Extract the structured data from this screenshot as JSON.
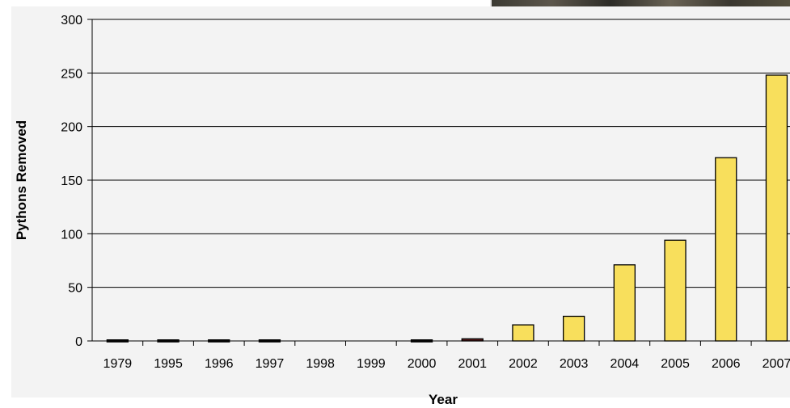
{
  "chart_data": {
    "type": "bar",
    "title": "",
    "xlabel": "Year",
    "ylabel": "Pythons Removed",
    "categories": [
      "1979",
      "1995",
      "1996",
      "1997",
      "1998",
      "1999",
      "2000",
      "2001",
      "2002",
      "2003",
      "2004",
      "2005",
      "2006",
      "2007"
    ],
    "values": [
      1,
      1,
      1,
      1,
      0,
      0,
      1,
      2,
      15,
      23,
      71,
      94,
      171,
      248
    ],
    "ylim": [
      0,
      300
    ],
    "yticks": [
      0,
      50,
      100,
      150,
      200,
      250,
      300
    ],
    "grid": true,
    "legend": "none",
    "colors": {
      "bar_fill": "#f8df5c",
      "bar_stroke": "#000000",
      "small_bar_fill": "#1a1a1a",
      "small_bar_2001": "#5a1a1a",
      "gridline": "#000000",
      "plot_background": "#f3f3f3"
    }
  }
}
